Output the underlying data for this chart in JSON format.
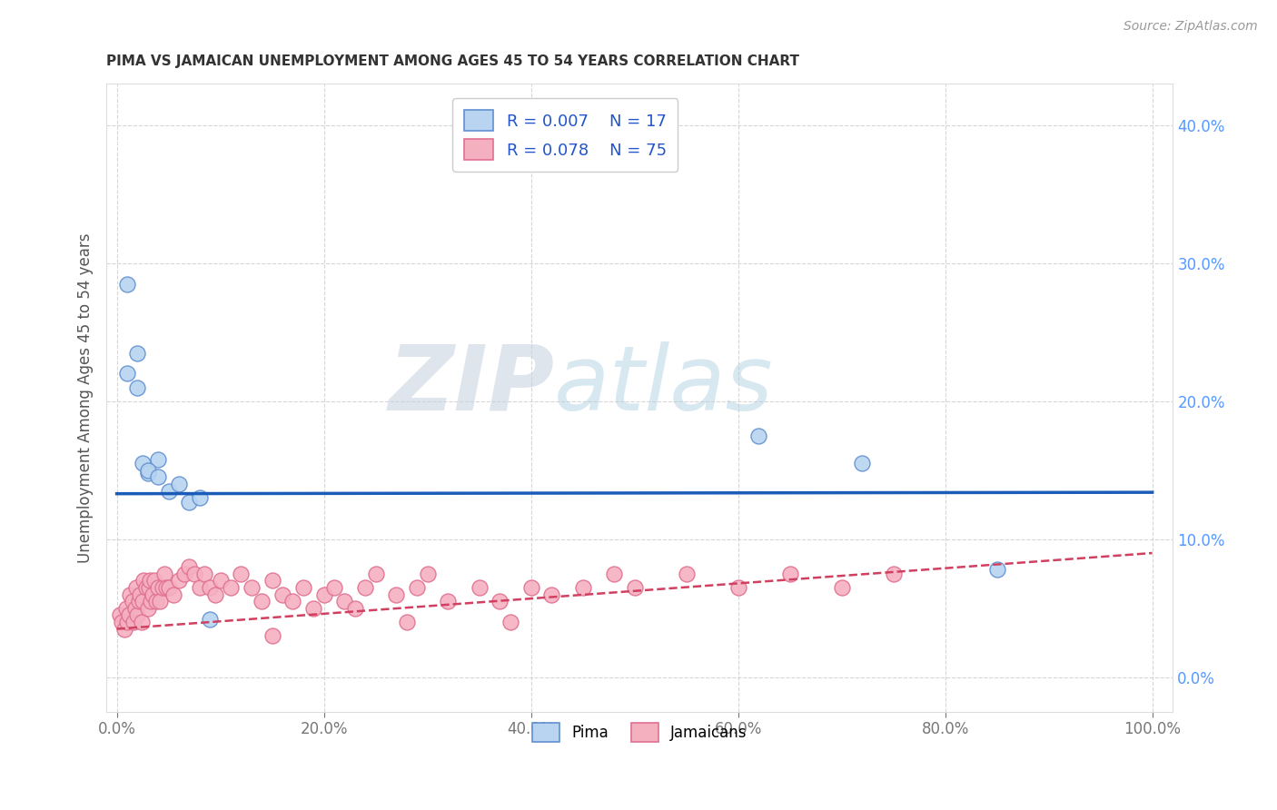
{
  "title": "PIMA VS JAMAICAN UNEMPLOYMENT AMONG AGES 45 TO 54 YEARS CORRELATION CHART",
  "source_text": "Source: ZipAtlas.com",
  "ylabel": "Unemployment Among Ages 45 to 54 years",
  "xlim": [
    -0.01,
    1.02
  ],
  "ylim": [
    -0.025,
    0.43
  ],
  "xticks": [
    0.0,
    0.2,
    0.4,
    0.6,
    0.8,
    1.0
  ],
  "xticklabels": [
    "0.0%",
    "20.0%",
    "40.0%",
    "60.0%",
    "80.0%",
    "100.0%"
  ],
  "yticks": [
    0.0,
    0.1,
    0.2,
    0.3,
    0.4
  ],
  "yticklabels": [
    "0.0%",
    "10.0%",
    "20.0%",
    "30.0%",
    "40.0%"
  ],
  "pima_color": "#b8d4f0",
  "jamaican_color": "#f5b0c0",
  "pima_edge_color": "#6090d0",
  "jamaican_edge_color": "#e07090",
  "pima_line_color": "#1a5cb8",
  "jamaican_line_color": "#d04060",
  "legend_pima_label": "R = 0.007    N = 17",
  "legend_jamaican_label": "R = 0.078    N = 75",
  "watermark_zip": "ZIP",
  "watermark_atlas": "atlas",
  "pima_x": [
    0.01,
    0.01,
    0.02,
    0.02,
    0.025,
    0.03,
    0.04,
    0.05,
    0.06,
    0.07,
    0.08,
    0.09,
    0.62,
    0.72,
    0.85,
    0.03,
    0.04
  ],
  "pima_y": [
    0.285,
    0.22,
    0.235,
    0.21,
    0.155,
    0.148,
    0.158,
    0.135,
    0.14,
    0.127,
    0.13,
    0.042,
    0.175,
    0.155,
    0.078,
    0.15,
    0.145
  ],
  "jamaican_x": [
    0.003,
    0.005,
    0.007,
    0.009,
    0.01,
    0.012,
    0.013,
    0.015,
    0.016,
    0.018,
    0.019,
    0.02,
    0.021,
    0.022,
    0.024,
    0.025,
    0.026,
    0.028,
    0.03,
    0.031,
    0.032,
    0.033,
    0.035,
    0.036,
    0.038,
    0.04,
    0.042,
    0.044,
    0.046,
    0.048,
    0.05,
    0.055,
    0.06,
    0.065,
    0.07,
    0.075,
    0.08,
    0.085,
    0.09,
    0.095,
    0.1,
    0.11,
    0.12,
    0.13,
    0.14,
    0.15,
    0.16,
    0.17,
    0.18,
    0.19,
    0.2,
    0.21,
    0.22,
    0.23,
    0.24,
    0.25,
    0.27,
    0.29,
    0.3,
    0.32,
    0.35,
    0.37,
    0.4,
    0.42,
    0.45,
    0.48,
    0.5,
    0.55,
    0.6,
    0.65,
    0.7,
    0.75,
    0.38,
    0.28,
    0.15
  ],
  "jamaican_y": [
    0.045,
    0.04,
    0.035,
    0.05,
    0.04,
    0.045,
    0.06,
    0.055,
    0.04,
    0.05,
    0.065,
    0.045,
    0.055,
    0.06,
    0.04,
    0.055,
    0.07,
    0.065,
    0.05,
    0.065,
    0.07,
    0.055,
    0.06,
    0.07,
    0.055,
    0.065,
    0.055,
    0.065,
    0.075,
    0.065,
    0.065,
    0.06,
    0.07,
    0.075,
    0.08,
    0.075,
    0.065,
    0.075,
    0.065,
    0.06,
    0.07,
    0.065,
    0.075,
    0.065,
    0.055,
    0.07,
    0.06,
    0.055,
    0.065,
    0.05,
    0.06,
    0.065,
    0.055,
    0.05,
    0.065,
    0.075,
    0.06,
    0.065,
    0.075,
    0.055,
    0.065,
    0.055,
    0.065,
    0.06,
    0.065,
    0.075,
    0.065,
    0.075,
    0.065,
    0.075,
    0.065,
    0.075,
    0.04,
    0.04,
    0.03
  ],
  "pima_trend_y0": 0.133,
  "pima_trend_y1": 0.134,
  "jamaican_trend_y0": 0.035,
  "jamaican_trend_y1": 0.09,
  "background_color": "#ffffff",
  "grid_color": "#cccccc",
  "tick_color_x": "#777777",
  "tick_color_y": "#5599ff",
  "title_color": "#333333",
  "source_color": "#999999",
  "ylabel_color": "#555555"
}
